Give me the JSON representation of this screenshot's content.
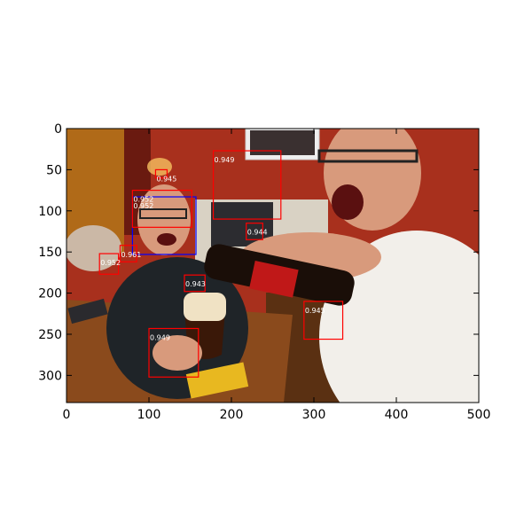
{
  "figure": {
    "image_extent": {
      "x": [
        0,
        500
      ],
      "y": [
        0,
        333
      ]
    },
    "xaxis": {
      "ticks": [
        0,
        100,
        200,
        300,
        400,
        500
      ],
      "tick_labels": [
        "0",
        "100",
        "200",
        "300",
        "400",
        "500"
      ]
    },
    "yaxis": {
      "ticks": [
        0,
        50,
        100,
        150,
        200,
        250,
        300
      ],
      "tick_labels": [
        "0",
        "50",
        "100",
        "150",
        "200",
        "250",
        "300"
      ]
    },
    "box_colors": {
      "red": "#ff0000",
      "blue": "#0000ff"
    },
    "detections": [
      {
        "label": "0.949",
        "color": "red",
        "x0": 178,
        "y0": 27,
        "x1": 260,
        "y1": 110
      },
      {
        "label": "0.945",
        "color": "red",
        "x0": 108,
        "y0": 50,
        "x1": 122,
        "y1": 60
      },
      {
        "label": "0.952",
        "color": "blue",
        "x0": 80,
        "y0": 83,
        "x1": 157,
        "y1": 153
      },
      {
        "label": "0.952",
        "color": "red",
        "x0": 80,
        "y0": 75,
        "x1": 152,
        "y1": 120
      },
      {
        "label": "0.944",
        "color": "red",
        "x0": 218,
        "y0": 115,
        "x1": 238,
        "y1": 135
      },
      {
        "label": "0.961",
        "color": "red",
        "x0": 65,
        "y0": 142,
        "x1": 85,
        "y1": 162
      },
      {
        "label": "0.952",
        "color": "red",
        "x0": 40,
        "y0": 152,
        "x1": 63,
        "y1": 177
      },
      {
        "label": "0.943",
        "color": "red",
        "x0": 143,
        "y0": 178,
        "x1": 168,
        "y1": 198
      },
      {
        "label": "0.945",
        "color": "red",
        "x0": 288,
        "y0": 210,
        "x1": 335,
        "y1": 256
      },
      {
        "label": "0.949",
        "color": "red",
        "x0": 100,
        "y0": 243,
        "x1": 160,
        "y1": 302
      }
    ]
  },
  "palette": {
    "wall": "#a8301d",
    "wall_dark": "#6a1a10",
    "wall_left": "#b06a18",
    "table": "#8a4a1c",
    "floor": "#5a3012",
    "shirt": "#f2efea",
    "sweater": "#1f2428",
    "skin": "#d89a7c",
    "bottle": "#1a0e08",
    "beer": "#3a1808",
    "foam": "#f0e2c4"
  }
}
